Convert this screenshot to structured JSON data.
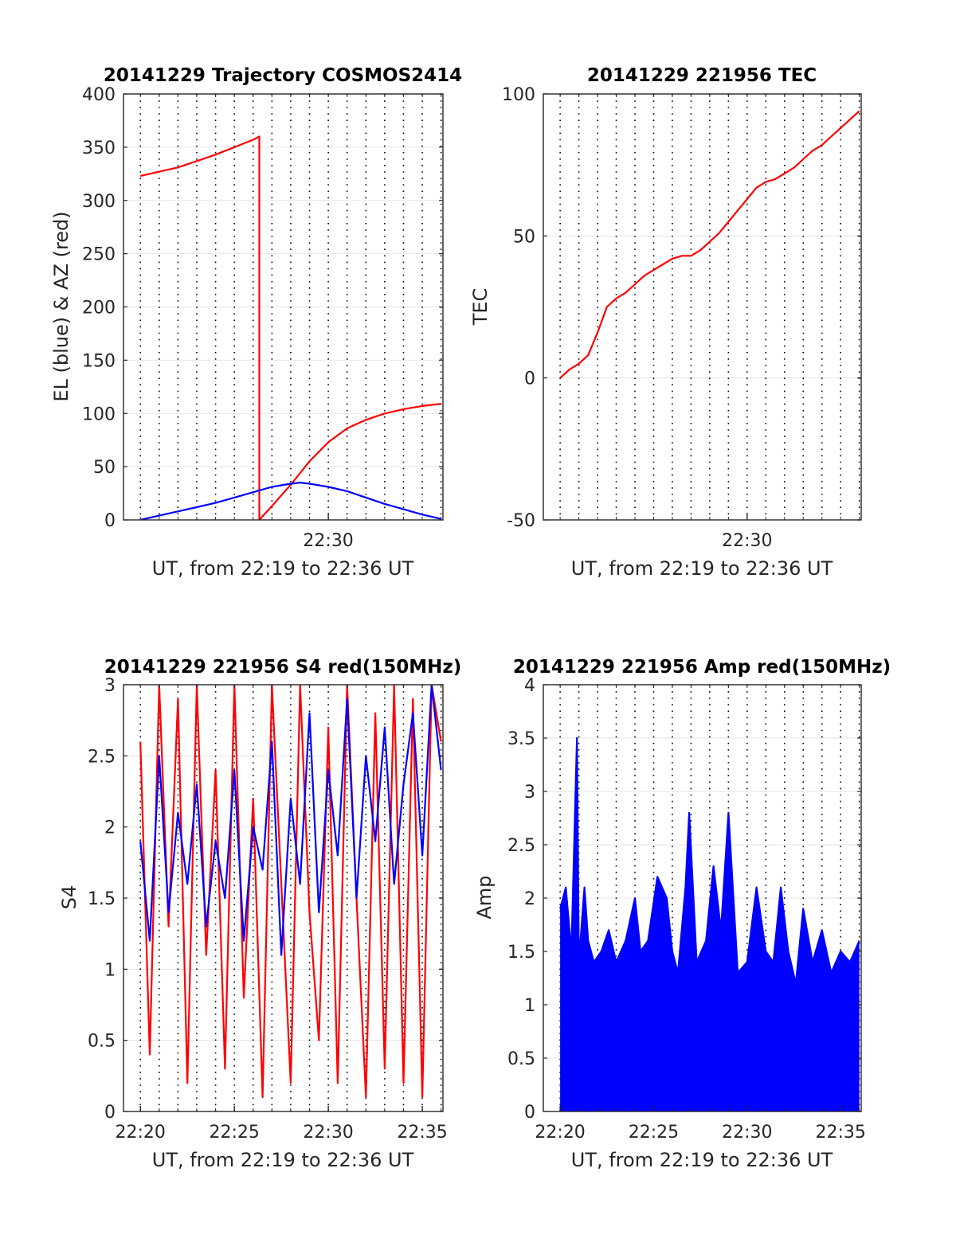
{
  "chart_data": [
    {
      "type": "line",
      "title": "20141229 Trajectory COSMOS2414",
      "xlabel": "UT, from 22:19 to 22:36 UT",
      "ylabel": "EL (blue) & AZ (red)",
      "x_unit": "minutes of 22:00 UT",
      "xlim": [
        19.1,
        36.1
      ],
      "ylim": [
        0,
        400
      ],
      "yticks": [
        0,
        50,
        100,
        150,
        200,
        250,
        300,
        350,
        400
      ],
      "xticks": [
        30
      ],
      "xtick_labels": [
        "22:30"
      ],
      "grid": true,
      "series": [
        {
          "color": "#ff0000",
          "x": [
            20.0,
            21.0,
            22.0,
            23.0,
            24.0,
            25.0,
            26.0,
            26.33,
            26.33,
            27.0,
            28.0,
            29.0,
            30.0,
            31.0,
            32.0,
            33.0,
            34.0,
            35.0,
            36.0
          ],
          "y": [
            323,
            327,
            331,
            337,
            343,
            350,
            357,
            360,
            0,
            13,
            33,
            55,
            73,
            86,
            94,
            100,
            104,
            107,
            109
          ]
        },
        {
          "color": "#0000ff",
          "x": [
            20.0,
            21.0,
            22.0,
            23.0,
            24.0,
            25.0,
            26.0,
            27.0,
            28.0,
            28.5,
            29.0,
            30.0,
            31.0,
            32.0,
            33.0,
            34.0,
            35.0,
            36.0
          ],
          "y": [
            0,
            4,
            8,
            12,
            16,
            21,
            26,
            31,
            34,
            35,
            34,
            31,
            27,
            21,
            15,
            10,
            5,
            1
          ]
        }
      ]
    },
    {
      "type": "line",
      "title": "20141229 221956 TEC",
      "xlabel": "UT, from 22:19 to 22:36 UT",
      "ylabel": "TEC",
      "x_unit": "minutes of 22:00 UT",
      "xlim": [
        19.1,
        36.1
      ],
      "ylim": [
        -50,
        100
      ],
      "yticks": [
        -50,
        0,
        50,
        100
      ],
      "xticks": [
        30
      ],
      "xtick_labels": [
        "22:30"
      ],
      "grid": true,
      "series": [
        {
          "color": "#ff0000",
          "x": [
            20.0,
            20.5,
            21.0,
            21.5,
            22.0,
            22.5,
            23.0,
            23.5,
            24.0,
            24.5,
            25.0,
            25.5,
            26.0,
            26.5,
            27.0,
            27.5,
            28.0,
            28.5,
            29.0,
            29.5,
            30.0,
            30.5,
            31.0,
            31.5,
            32.0,
            32.5,
            33.0,
            33.5,
            34.0,
            34.5,
            35.0,
            35.5,
            36.0
          ],
          "y": [
            0,
            3,
            5,
            8,
            16,
            25,
            28,
            30,
            33,
            36,
            38,
            40,
            42,
            43,
            43,
            45,
            48,
            51,
            55,
            59,
            63,
            67,
            69,
            70,
            72,
            74,
            77,
            80,
            82,
            85,
            88,
            91,
            94
          ]
        }
      ]
    },
    {
      "type": "line",
      "title": "20141229 221956 S4 red(150MHz)",
      "xlabel": "UT, from 22:19 to 22:36 UT",
      "ylabel": "S4",
      "x_unit": "minutes of 22:00 UT",
      "xlim": [
        19.1,
        36.1
      ],
      "ylim": [
        0,
        3
      ],
      "yticks": [
        0,
        0.5,
        1,
        1.5,
        2,
        2.5,
        3
      ],
      "xticks": [
        20,
        25,
        30,
        35
      ],
      "xtick_labels": [
        "22:20",
        "22:25",
        "22:30",
        "22:35"
      ],
      "grid": true,
      "series": [
        {
          "color": "#ff0000",
          "x": [
            20.0,
            20.5,
            21.0,
            21.5,
            22.0,
            22.5,
            23.0,
            23.5,
            24.0,
            24.5,
            25.0,
            25.5,
            26.0,
            26.5,
            27.0,
            27.5,
            28.0,
            28.5,
            29.0,
            29.5,
            30.0,
            30.5,
            31.0,
            31.5,
            32.0,
            32.5,
            33.0,
            33.5,
            34.0,
            34.5,
            35.0,
            35.5,
            36.0
          ],
          "y": [
            2.6,
            0.4,
            3.0,
            1.3,
            2.9,
            0.2,
            3.0,
            1.1,
            2.4,
            0.3,
            3.0,
            0.8,
            2.2,
            0.1,
            3.0,
            1.6,
            0.2,
            3.0,
            1.4,
            0.5,
            2.7,
            0.2,
            3.0,
            1.5,
            0.1,
            2.8,
            0.3,
            3.0,
            0.2,
            2.9,
            0.1,
            3.0,
            2.6
          ]
        },
        {
          "color": "#0000ff",
          "x": [
            20.0,
            20.5,
            21.0,
            21.5,
            22.0,
            22.5,
            23.0,
            23.5,
            24.0,
            24.5,
            25.0,
            25.5,
            26.0,
            26.5,
            27.0,
            27.5,
            28.0,
            28.5,
            29.0,
            29.5,
            30.0,
            30.5,
            31.0,
            31.5,
            32.0,
            32.5,
            33.0,
            33.5,
            34.0,
            34.5,
            35.0,
            35.5,
            36.0
          ],
          "y": [
            1.9,
            1.2,
            2.5,
            1.4,
            2.1,
            1.6,
            2.3,
            1.3,
            1.9,
            1.5,
            2.4,
            1.2,
            2.0,
            1.7,
            2.6,
            1.1,
            2.2,
            1.6,
            2.8,
            1.4,
            2.4,
            1.8,
            2.9,
            1.5,
            2.5,
            1.9,
            2.7,
            1.6,
            2.3,
            2.8,
            1.8,
            3.0,
            2.4
          ]
        }
      ]
    },
    {
      "type": "line",
      "title": "20141229 221956 Amp red(150MHz)",
      "xlabel": "UT, from 22:19 to 22:36 UT",
      "ylabel": "Amp",
      "x_unit": "minutes of 22:00 UT",
      "xlim": [
        19.1,
        36.1
      ],
      "ylim": [
        0,
        4
      ],
      "yticks": [
        0,
        0.5,
        1,
        1.5,
        2,
        2.5,
        3,
        3.5,
        4
      ],
      "xticks": [
        20,
        25,
        30,
        35
      ],
      "xtick_labels": [
        "22:20",
        "22:25",
        "22:30",
        "22:35"
      ],
      "grid": true,
      "series": [
        {
          "color": "#0000ff",
          "fill_to_zero": true,
          "x": [
            20.0,
            20.3,
            20.6,
            20.9,
            21.0,
            21.3,
            21.5,
            21.8,
            22.2,
            22.6,
            23.0,
            23.5,
            24.0,
            24.3,
            24.7,
            25.2,
            25.7,
            26.0,
            26.3,
            26.7,
            26.9,
            27.3,
            27.8,
            28.2,
            28.6,
            29.0,
            29.5,
            30.0,
            30.5,
            31.0,
            31.4,
            31.8,
            32.2,
            32.6,
            33.0,
            33.5,
            34.0,
            34.5,
            35.0,
            35.5,
            36.0
          ],
          "y": [
            1.9,
            2.1,
            1.5,
            3.5,
            1.4,
            2.1,
            1.6,
            1.4,
            1.5,
            1.7,
            1.4,
            1.6,
            2.0,
            1.5,
            1.6,
            2.2,
            2.0,
            1.5,
            1.3,
            2.1,
            2.8,
            1.4,
            1.6,
            2.3,
            1.7,
            2.8,
            1.3,
            1.4,
            2.1,
            1.5,
            1.4,
            2.1,
            1.5,
            1.2,
            1.9,
            1.4,
            1.7,
            1.3,
            1.5,
            1.4,
            1.6
          ]
        }
      ]
    }
  ]
}
